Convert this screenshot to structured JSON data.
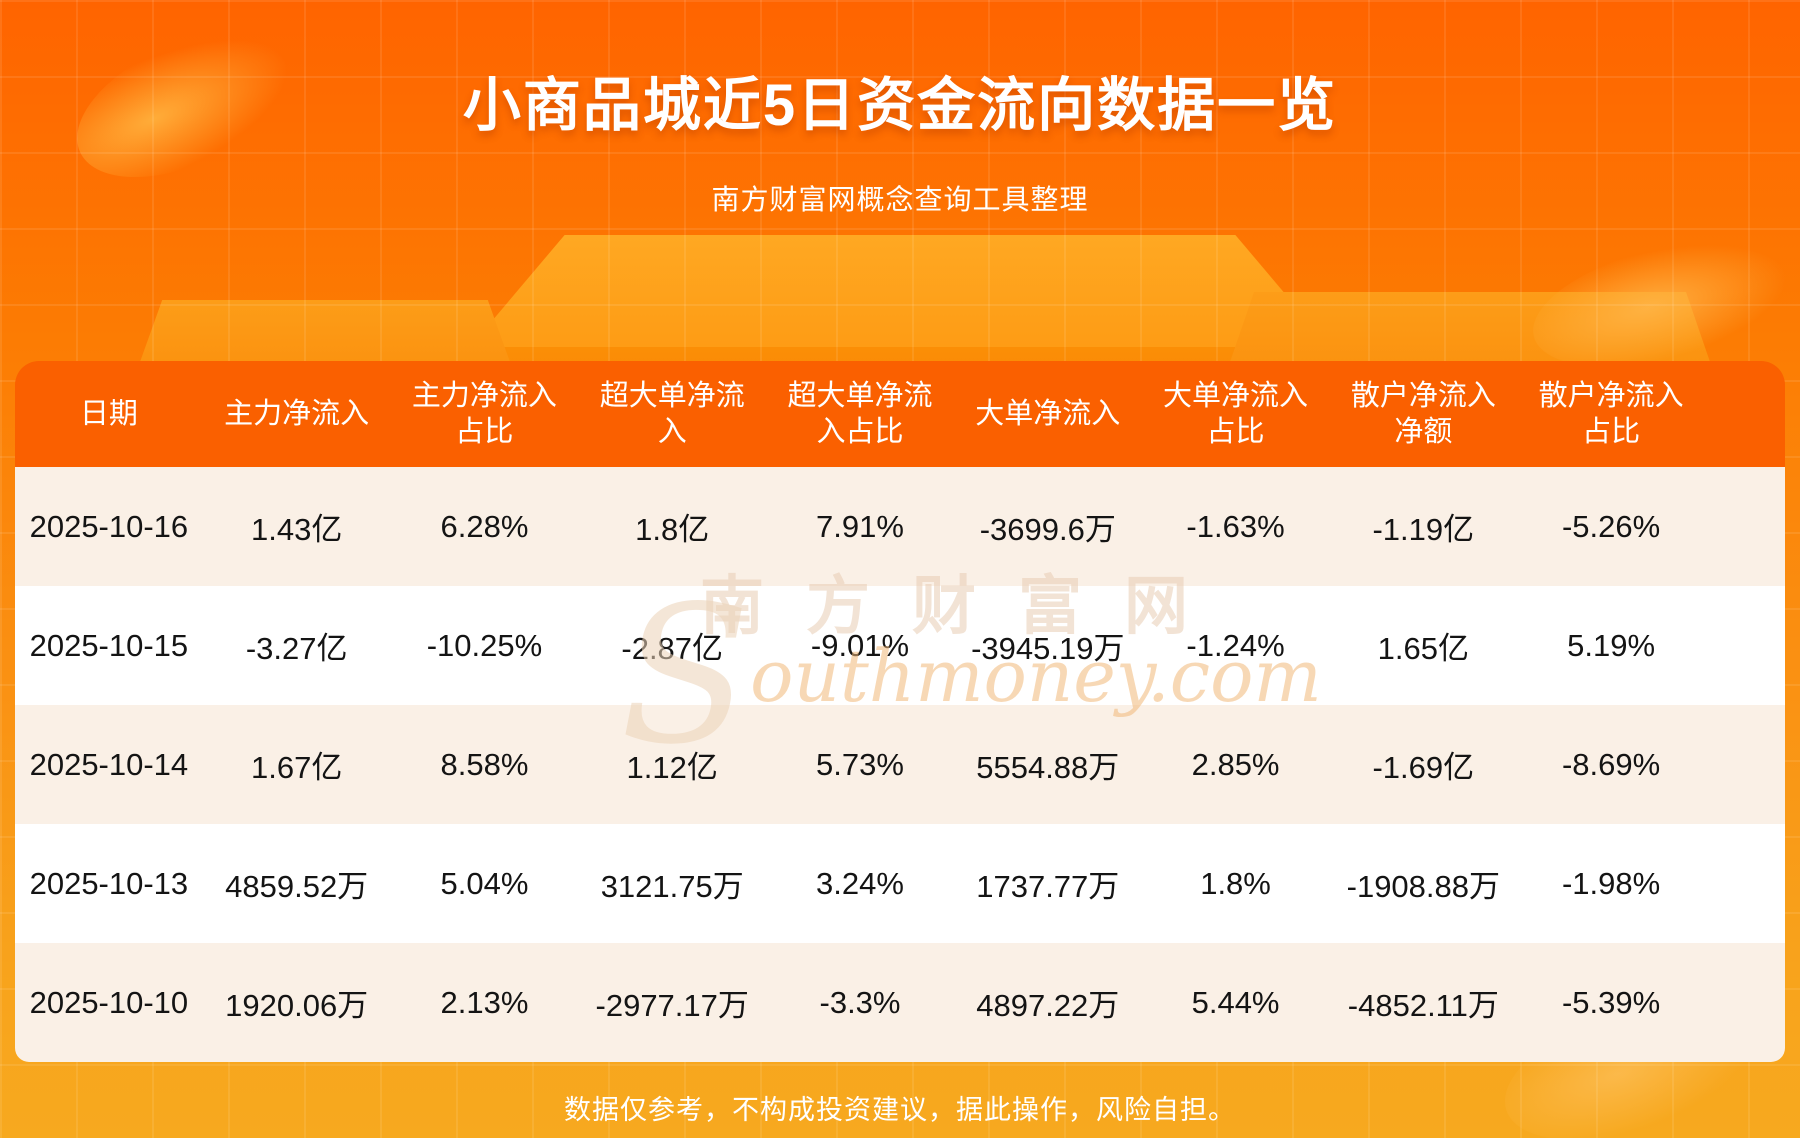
{
  "header": {
    "title": "小商品城近5日资金流向数据一览",
    "subtitle": "南方财富网概念查询工具整理"
  },
  "table": {
    "headers": [
      "日期",
      "主力净流入",
      "主力净流入占比",
      "超大单净流入",
      "超大单净流入占比",
      "大单净流入",
      "大单净流入占比",
      "散户净流入净额",
      "散户净流入占比"
    ],
    "rows": [
      [
        "2025-10-16",
        "1.43亿",
        "6.28%",
        "1.8亿",
        "7.91%",
        "-3699.6万",
        "-1.63%",
        "-1.19亿",
        "-5.26%"
      ],
      [
        "2025-10-15",
        "-3.27亿",
        "-10.25%",
        "-2.87亿",
        "-9.01%",
        "-3945.19万",
        "-1.24%",
        "1.65亿",
        "5.19%"
      ],
      [
        "2025-10-14",
        "1.67亿",
        "8.58%",
        "1.12亿",
        "5.73%",
        "5554.88万",
        "2.85%",
        "-1.69亿",
        "-8.69%"
      ],
      [
        "2025-10-13",
        "4859.52万",
        "5.04%",
        "3121.75万",
        "3.24%",
        "1737.77万",
        "1.8%",
        "-1908.88万",
        "-1.98%"
      ],
      [
        "2025-10-10",
        "1920.06万",
        "2.13%",
        "-2977.17万",
        "-3.3%",
        "4897.22万",
        "5.44%",
        "-4852.11万",
        "-5.39%"
      ]
    ]
  },
  "watermark": {
    "cn": "南方财富网",
    "en_big": "S",
    "en_rest": "outhmoney.com"
  },
  "footer": {
    "disclaimer": "数据仅参考，不构成投资建议，据此操作，风险自担。"
  },
  "colors": {
    "background_top": "#FF6400",
    "background_bottom": "#F7A91F",
    "table_header_bg": "#FA6000",
    "row_alt_bg": "#FAF0E6",
    "row_white_bg": "#FFFFFF",
    "text_dark": "#141414",
    "text_white": "#FFFFFF"
  },
  "chart_data": {
    "type": "table",
    "title": "小商品城近5日资金流向数据一览",
    "subtitle": "南方财富网概念查询工具整理",
    "columns": [
      "日期",
      "主力净流入",
      "主力净流入占比",
      "超大单净流入",
      "超大单净流入占比",
      "大单净流入",
      "大单净流入占比",
      "散户净流入净额",
      "散户净流入占比"
    ],
    "rows": [
      [
        "2025-10-16",
        "1.43亿",
        "6.28%",
        "1.8亿",
        "7.91%",
        "-3699.6万",
        "-1.63%",
        "-1.19亿",
        "-5.26%"
      ],
      [
        "2025-10-15",
        "-3.27亿",
        "-10.25%",
        "-2.87亿",
        "-9.01%",
        "-3945.19万",
        "-1.24%",
        "1.65亿",
        "5.19%"
      ],
      [
        "2025-10-14",
        "1.67亿",
        "8.58%",
        "1.12亿",
        "5.73%",
        "5554.88万",
        "2.85%",
        "-1.69亿",
        "-8.69%"
      ],
      [
        "2025-10-13",
        "4859.52万",
        "5.04%",
        "3121.75万",
        "3.24%",
        "1737.77万",
        "1.8%",
        "-1908.88万",
        "-1.98%"
      ],
      [
        "2025-10-10",
        "1920.06万",
        "2.13%",
        "-2977.17万",
        "-3.3%",
        "4897.22万",
        "5.44%",
        "-4852.11万",
        "-5.39%"
      ]
    ]
  }
}
